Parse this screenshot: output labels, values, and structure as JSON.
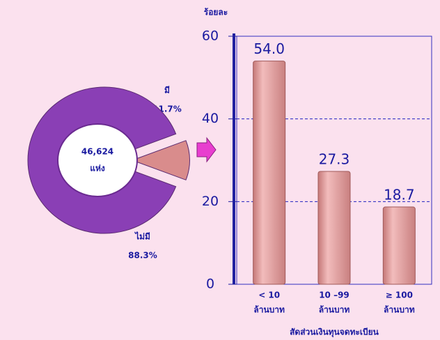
{
  "chart_data": [
    {
      "type": "pie",
      "center_label": [
        "46,624",
        "แห่ง"
      ],
      "categories": [
        "มี",
        "ไม่มี"
      ],
      "values": [
        11.7,
        88.3
      ],
      "value_labels": [
        "11.7%",
        "88.3%"
      ],
      "colors": [
        "#d98c8c",
        "#8a3fb5"
      ]
    },
    {
      "type": "bar",
      "ylabel": "ร้อยละ",
      "xlabel": "สัดส่วนเงินทุนจดทะเบียน",
      "categories": [
        [
          "< 10",
          "ล้านบาท"
        ],
        [
          "10 –99",
          "ล้านบาท"
        ],
        [
          "≥ 100",
          "ล้านบาท"
        ]
      ],
      "values": [
        54.0,
        27.3,
        18.7
      ],
      "value_labels": [
        "54.0",
        "27.3",
        "18.7"
      ],
      "color": "#e0a0a0",
      "ylim": [
        0,
        60
      ],
      "yticks": [
        0,
        20,
        40,
        60
      ],
      "grid": true
    }
  ]
}
